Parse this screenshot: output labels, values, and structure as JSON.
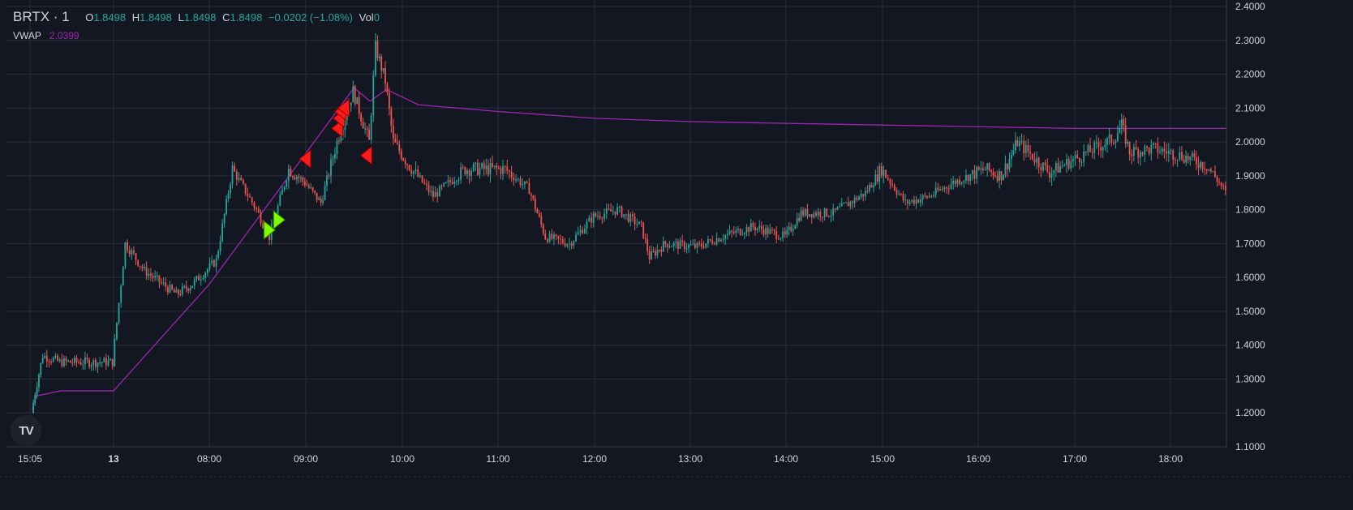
{
  "legend": {
    "symbol": "BRTX · 1",
    "o_label": "O",
    "o_value": "1.8498",
    "h_label": "H",
    "h_value": "1.8498",
    "l_label": "L",
    "l_value": "1.8498",
    "c_label": "C",
    "c_value": "1.8498",
    "change": "−0.0202 (−1.08%)",
    "vol_label": "Vol",
    "vol_value": "0"
  },
  "indicator": {
    "name": "VWAP",
    "value": "2.0399"
  },
  "logo_text": "TV",
  "colors": {
    "background": "#131722",
    "grid": "#2a2e39",
    "text": "#d1d4dc",
    "up": "#26a69a",
    "down": "#ef5350",
    "vwap": "#9c27b0",
    "sell_marker": "#ff1a1a",
    "buy_marker": "#7cfc00"
  },
  "chart_data": {
    "type": "candlestick",
    "title": "BRTX · 1",
    "xlabel": "",
    "ylabel": "",
    "grid": true,
    "y_ticks": [
      "1.1000",
      "1.2000",
      "1.3000",
      "1.4000",
      "1.5000",
      "1.6000",
      "1.7000",
      "1.8000",
      "1.9000",
      "2.0000",
      "2.1000",
      "2.2000",
      "2.3000",
      "2.4000"
    ],
    "x_ticks": [
      "15:05",
      "13",
      "08:00",
      "09:00",
      "10:00",
      "11:00",
      "12:00",
      "13:00",
      "14:00",
      "15:00",
      "16:00",
      "17:00",
      "18:00"
    ],
    "ylim": [
      1.1,
      2.4
    ],
    "price_path": [
      {
        "t": "15:05",
        "p": 1.2
      },
      {
        "t": "15:30",
        "p": 1.26
      },
      {
        "t": "15:50",
        "p": 1.37
      },
      {
        "t": "16:30",
        "p": 1.35
      },
      {
        "t": "07:00",
        "p": 1.35
      },
      {
        "t": "07:08",
        "p": 1.7
      },
      {
        "t": "07:20",
        "p": 1.62
      },
      {
        "t": "07:40",
        "p": 1.55
      },
      {
        "t": "07:50",
        "p": 1.58
      },
      {
        "t": "08:05",
        "p": 1.65
      },
      {
        "t": "08:15",
        "p": 1.92
      },
      {
        "t": "08:30",
        "p": 1.8
      },
      {
        "t": "08:38",
        "p": 1.72
      },
      {
        "t": "08:50",
        "p": 1.92
      },
      {
        "t": "09:00",
        "p": 1.88
      },
      {
        "t": "09:10",
        "p": 1.82
      },
      {
        "t": "09:20",
        "p": 2.0
      },
      {
        "t": "09:30",
        "p": 2.15
      },
      {
        "t": "09:40",
        "p": 2.0
      },
      {
        "t": "09:44",
        "p": 2.28
      },
      {
        "t": "09:50",
        "p": 2.18
      },
      {
        "t": "09:55",
        "p": 2.0
      },
      {
        "t": "10:05",
        "p": 1.93
      },
      {
        "t": "10:20",
        "p": 1.84
      },
      {
        "t": "10:40",
        "p": 1.92
      },
      {
        "t": "11:05",
        "p": 1.92
      },
      {
        "t": "11:20",
        "p": 1.86
      },
      {
        "t": "11:30",
        "p": 1.72
      },
      {
        "t": "11:45",
        "p": 1.7
      },
      {
        "t": "12:00",
        "p": 1.78
      },
      {
        "t": "12:15",
        "p": 1.8
      },
      {
        "t": "12:30",
        "p": 1.75
      },
      {
        "t": "12:35",
        "p": 1.66
      },
      {
        "t": "12:45",
        "p": 1.7
      },
      {
        "t": "13:05",
        "p": 1.69
      },
      {
        "t": "13:20",
        "p": 1.72
      },
      {
        "t": "13:40",
        "p": 1.75
      },
      {
        "t": "14:00",
        "p": 1.72
      },
      {
        "t": "14:10",
        "p": 1.79
      },
      {
        "t": "14:30",
        "p": 1.79
      },
      {
        "t": "14:50",
        "p": 1.85
      },
      {
        "t": "15:00",
        "p": 1.92
      },
      {
        "t": "15:15",
        "p": 1.82
      },
      {
        "t": "15:30",
        "p": 1.84
      },
      {
        "t": "15:45",
        "p": 1.88
      },
      {
        "t": "16:05",
        "p": 1.92
      },
      {
        "t": "16:15",
        "p": 1.9
      },
      {
        "t": "16:25",
        "p": 2.0
      },
      {
        "t": "16:45",
        "p": 1.91
      },
      {
        "t": "17:05",
        "p": 1.96
      },
      {
        "t": "17:25",
        "p": 2.01
      },
      {
        "t": "17:30",
        "p": 2.05
      },
      {
        "t": "17:35",
        "p": 1.97
      },
      {
        "t": "17:50",
        "p": 1.98
      },
      {
        "t": "18:10",
        "p": 1.96
      },
      {
        "t": "18:30",
        "p": 1.93
      },
      {
        "t": "18:40",
        "p": 1.88
      },
      {
        "t": "18:45",
        "p": 1.85
      }
    ],
    "vwap": [
      {
        "t": "15:05",
        "p": 1.21
      },
      {
        "t": "15:30",
        "p": 1.25
      },
      {
        "t": "16:30",
        "p": 1.265
      },
      {
        "t": "07:00",
        "p": 1.265
      },
      {
        "t": "08:00",
        "p": 1.58
      },
      {
        "t": "09:30",
        "p": 2.16
      },
      {
        "t": "09:40",
        "p": 2.12
      },
      {
        "t": "09:50",
        "p": 2.155
      },
      {
        "t": "10:10",
        "p": 2.11
      },
      {
        "t": "11:00",
        "p": 2.09
      },
      {
        "t": "12:00",
        "p": 2.07
      },
      {
        "t": "13:00",
        "p": 2.06
      },
      {
        "t": "14:00",
        "p": 2.055
      },
      {
        "t": "15:00",
        "p": 2.05
      },
      {
        "t": "16:00",
        "p": 2.045
      },
      {
        "t": "17:00",
        "p": 2.04
      },
      {
        "t": "18:45",
        "p": 2.04
      }
    ],
    "markers": [
      {
        "type": "sell",
        "t": "09:00",
        "p": 1.95
      },
      {
        "type": "sell",
        "t": "09:20",
        "p": 2.04
      },
      {
        "type": "sell",
        "t": "09:21",
        "p": 2.07
      },
      {
        "type": "sell",
        "t": "09:22",
        "p": 2.09
      },
      {
        "type": "sell",
        "t": "09:24",
        "p": 2.1
      },
      {
        "type": "sell",
        "t": "09:38",
        "p": 1.96
      },
      {
        "type": "buy",
        "t": "08:37",
        "p": 1.74
      },
      {
        "type": "buy",
        "t": "08:43",
        "p": 1.77
      }
    ]
  }
}
